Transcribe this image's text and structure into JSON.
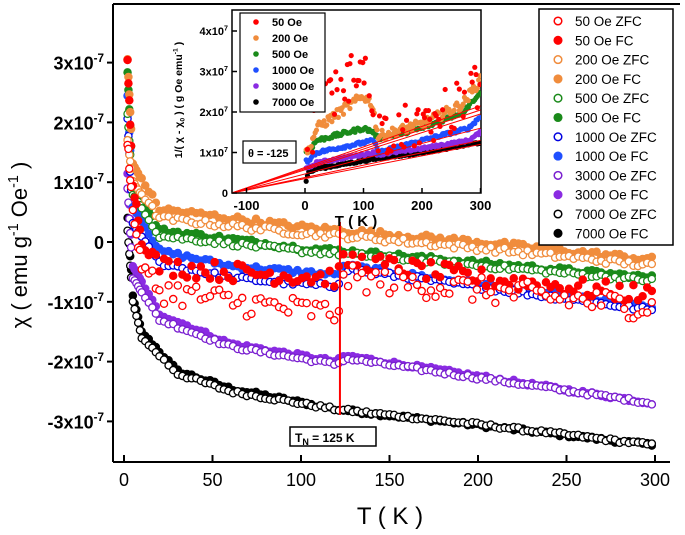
{
  "chart_data": [
    {
      "type": "scatter",
      "xlabel": "T ( K )",
      "ylabel": "χ ( emu g-1 Oe-1 )",
      "ylabel_parts": {
        "pre": "χ  ( emu g",
        "sup1": "-1",
        "mid": " Oe",
        "sup2": "-1",
        "post": " )"
      },
      "y_unit": "1e-7 emu g-1 Oe-1",
      "xlim": [
        -6,
        307
      ],
      "ylim": [
        -3.7,
        4.0
      ],
      "xticks": [
        0,
        50,
        100,
        150,
        200,
        250,
        300
      ],
      "yticks": [
        3,
        2,
        1,
        0,
        -1,
        -2,
        -3
      ],
      "ytick_labels": [
        "3x10-7",
        "2x10-7",
        "1x10-7",
        "0",
        "-1x10-7",
        "-2x10-7",
        "-3x10-7"
      ],
      "grid": false,
      "legend_position": "top-right",
      "annotation": {
        "label_main": "T",
        "label_sub": "N",
        "label_rest": " = 125 K",
        "T": 122,
        "color": "#ff0000"
      },
      "series": [
        {
          "name": "50 Oe ZFC",
          "color": "#ff0000",
          "filled": false,
          "spread": 0.22,
          "points": [
            [
              2,
              1.7
            ],
            [
              5,
              0.5
            ],
            [
              10,
              -0.4
            ],
            [
              20,
              -0.8
            ],
            [
              60,
              -1.0
            ],
            [
              120,
              -1.2
            ],
            [
              125,
              -0.6
            ],
            [
              200,
              -0.8
            ],
            [
              300,
              -1.1
            ]
          ]
        },
        {
          "name": "50 Oe FC",
          "color": "#ff0000",
          "filled": true,
          "spread": 0.16,
          "points": [
            [
              2,
              3.0
            ],
            [
              5,
              1.0
            ],
            [
              10,
              0.0
            ],
            [
              20,
              -0.4
            ],
            [
              60,
              -0.5
            ],
            [
              120,
              -0.6
            ],
            [
              125,
              -0.3
            ],
            [
              200,
              -0.6
            ],
            [
              300,
              -0.9
            ]
          ]
        },
        {
          "name": "200 Oe ZFC",
          "color": "#f08c3c",
          "filled": false,
          "spread": 0.05,
          "points": [
            [
              2,
              1.7
            ],
            [
              5,
              1.0
            ],
            [
              20,
              0.4
            ],
            [
              100,
              0.15
            ],
            [
              125,
              0.1
            ],
            [
              200,
              -0.1
            ],
            [
              300,
              -0.4
            ]
          ]
        },
        {
          "name": "200 Oe FC",
          "color": "#f08c3c",
          "filled": true,
          "spread": 0.05,
          "points": [
            [
              2,
              3.05
            ],
            [
              5,
              1.3
            ],
            [
              20,
              0.55
            ],
            [
              100,
              0.25
            ],
            [
              200,
              0.0
            ],
            [
              300,
              -0.3
            ]
          ]
        },
        {
          "name": "500 Oe ZFC",
          "color": "#1a8a1a",
          "filled": false,
          "spread": 0.04,
          "points": [
            [
              2,
              2.15
            ],
            [
              5,
              0.8
            ],
            [
              20,
              0.1
            ],
            [
              100,
              -0.15
            ],
            [
              125,
              -0.2
            ],
            [
              300,
              -0.65
            ]
          ]
        },
        {
          "name": "500 Oe FC",
          "color": "#1a8a1a",
          "filled": true,
          "spread": 0.04,
          "points": [
            [
              2,
              2.85
            ],
            [
              5,
              1.0
            ],
            [
              20,
              0.2
            ],
            [
              100,
              -0.1
            ],
            [
              125,
              -0.15
            ],
            [
              300,
              -0.6
            ]
          ]
        },
        {
          "name": "1000 Oe ZFC",
          "color": "#0000e0",
          "filled": false,
          "spread": 0.04,
          "points": [
            [
              2,
              2.05
            ],
            [
              5,
              0.3
            ],
            [
              20,
              -0.35
            ],
            [
              60,
              -0.6
            ],
            [
              120,
              -0.75
            ],
            [
              125,
              -0.45
            ],
            [
              300,
              -1.15
            ]
          ]
        },
        {
          "name": "1000 Oe FC",
          "color": "#1f4fff",
          "filled": true,
          "spread": 0.04,
          "points": [
            [
              2,
              2.45
            ],
            [
              5,
              0.6
            ],
            [
              20,
              -0.15
            ],
            [
              60,
              -0.4
            ],
            [
              120,
              -0.55
            ],
            [
              125,
              -0.4
            ],
            [
              300,
              -1.1
            ]
          ]
        },
        {
          "name": "3000 Oe ZFC",
          "color": "#7a1fd0",
          "filled": false,
          "spread": 0.03,
          "points": [
            [
              2,
              0.9
            ],
            [
              5,
              -0.6
            ],
            [
              20,
              -1.3
            ],
            [
              60,
              -1.75
            ],
            [
              120,
              -2.05
            ],
            [
              125,
              -1.95
            ],
            [
              300,
              -2.7
            ]
          ]
        },
        {
          "name": "3000 Oe FC",
          "color": "#8a2be2",
          "filled": true,
          "spread": 0.03,
          "points": [
            [
              2,
              1.15
            ],
            [
              5,
              -0.4
            ],
            [
              20,
              -1.2
            ],
            [
              60,
              -1.7
            ],
            [
              120,
              -2.0
            ],
            [
              125,
              -1.9
            ],
            [
              300,
              -2.7
            ]
          ]
        },
        {
          "name": "7000 Oe ZFC",
          "color": "#000000",
          "filled": false,
          "spread": 0.03,
          "points": [
            [
              2,
              0.2
            ],
            [
              5,
              -1.0
            ],
            [
              10,
              -1.6
            ],
            [
              30,
              -2.2
            ],
            [
              60,
              -2.5
            ],
            [
              120,
              -2.8
            ],
            [
              200,
              -3.05
            ],
            [
              300,
              -3.4
            ]
          ]
        },
        {
          "name": "7000 Oe FC",
          "color": "#000000",
          "filled": true,
          "spread": 0.03,
          "points": [
            [
              2,
              0.4
            ],
            [
              5,
              -0.9
            ],
            [
              10,
              -1.5
            ],
            [
              30,
              -2.15
            ],
            [
              60,
              -2.45
            ],
            [
              120,
              -2.8
            ],
            [
              300,
              -3.4
            ]
          ]
        }
      ]
    },
    {
      "type": "scatter",
      "xlabel": "T ( K )",
      "ylabel": "1/( χ - χ0 ) ( g Oe emu-1 )",
      "ylabel_parts": {
        "pre": "1/( χ - χ",
        "sub": "0",
        "mid": " ) ( g Oe emu",
        "sup": "-1",
        "post": " )"
      },
      "y_unit": "1e7 g Oe emu-1",
      "xlim": [
        -125,
        305
      ],
      "ylim": [
        0,
        4.5
      ],
      "xticks": [
        -100,
        0,
        100,
        200,
        300
      ],
      "yticks": [
        0,
        1,
        2,
        3,
        4
      ],
      "ytick_labels": [
        "0",
        "1x107",
        "2x107",
        "3x107",
        "4x107"
      ],
      "grid": false,
      "legend_position": "top-left",
      "annotation": "θ = -125",
      "fit_color": "#ff0000",
      "fit_lines": [
        {
          "from": [
            -125,
            0
          ],
          "to": [
            300,
            2.05
          ]
        },
        {
          "from": [
            -125,
            0
          ],
          "to": [
            300,
            2.15
          ]
        },
        {
          "from": [
            -125,
            0
          ],
          "to": [
            300,
            1.95
          ]
        },
        {
          "from": [
            -125,
            0
          ],
          "to": [
            300,
            1.6
          ]
        },
        {
          "from": [
            -125,
            0
          ],
          "to": [
            300,
            1.3
          ]
        },
        {
          "from": [
            -125,
            0
          ],
          "to": [
            300,
            1.2
          ]
        }
      ],
      "series": [
        {
          "name": "50 Oe",
          "color": "#ff0000",
          "spread": 0.6,
          "points": [
            [
              5,
              1.0
            ],
            [
              20,
              1.8
            ],
            [
              60,
              2.6
            ],
            [
              95,
              3.2
            ],
            [
              110,
              2.6
            ],
            [
              125,
              1.5
            ],
            [
              200,
              1.7
            ],
            [
              270,
              2.2
            ],
            [
              300,
              2.7
            ]
          ]
        },
        {
          "name": "200 Oe",
          "color": "#f08c3c",
          "spread": 0.12,
          "points": [
            [
              5,
              1.0
            ],
            [
              20,
              1.6
            ],
            [
              60,
              2.0
            ],
            [
              100,
              2.4
            ],
            [
              115,
              2.2
            ],
            [
              125,
              1.4
            ],
            [
              200,
              1.7
            ],
            [
              270,
              2.2
            ],
            [
              300,
              2.8
            ]
          ]
        },
        {
          "name": "500 Oe",
          "color": "#1a8a1a",
          "spread": 0.05,
          "points": [
            [
              5,
              1.0
            ],
            [
              20,
              1.3
            ],
            [
              60,
              1.45
            ],
            [
              100,
              1.6
            ],
            [
              118,
              1.5
            ],
            [
              125,
              1.35
            ],
            [
              200,
              1.6
            ],
            [
              270,
              2.0
            ],
            [
              300,
              2.5
            ]
          ]
        },
        {
          "name": "1000 Oe",
          "color": "#1f4fff",
          "spread": 0.04,
          "points": [
            [
              5,
              0.8
            ],
            [
              20,
              1.0
            ],
            [
              118,
              1.3
            ],
            [
              125,
              1.0
            ],
            [
              200,
              1.3
            ],
            [
              280,
              1.6
            ],
            [
              300,
              1.9
            ]
          ]
        },
        {
          "name": "3000 Oe",
          "color": "#8a2be2",
          "spread": 0.03,
          "points": [
            [
              5,
              0.6
            ],
            [
              20,
              0.75
            ],
            [
              118,
              1.0
            ],
            [
              125,
              0.95
            ],
            [
              200,
              1.1
            ],
            [
              280,
              1.3
            ],
            [
              300,
              1.5
            ]
          ]
        },
        {
          "name": "7000 Oe",
          "color": "#000000",
          "spread": 0.03,
          "points": [
            [
              2,
              0.3
            ],
            [
              5,
              0.5
            ],
            [
              20,
              0.6
            ],
            [
              120,
              0.85
            ],
            [
              200,
              1.0
            ],
            [
              300,
              1.25
            ]
          ]
        }
      ]
    }
  ]
}
